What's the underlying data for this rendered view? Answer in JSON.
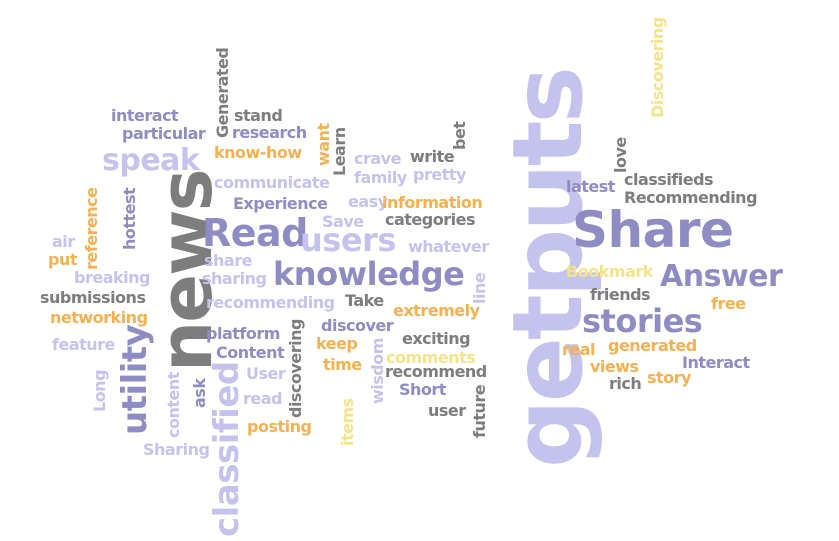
{
  "palette": {
    "purple": "#8d8cc3",
    "lavender": "#c3c3ee",
    "gray": "#7d7d7d",
    "orange": "#f5b152",
    "yellow": "#f5e38a"
  },
  "words": [
    {
      "text": "getputs",
      "color": "lavender",
      "vertical": true
    },
    {
      "text": "news",
      "color": "gray",
      "vertical": true
    },
    {
      "text": "Share",
      "color": "purple",
      "vertical": false
    },
    {
      "text": "Read",
      "color": "purple",
      "vertical": false
    },
    {
      "text": "users",
      "color": "lavender",
      "vertical": false
    },
    {
      "text": "knowledge",
      "color": "purple",
      "vertical": false
    },
    {
      "text": "classified",
      "color": "lavender",
      "vertical": true
    },
    {
      "text": "utility",
      "color": "purple",
      "vertical": true
    },
    {
      "text": "speak",
      "color": "lavender",
      "vertical": false
    },
    {
      "text": "stories",
      "color": "purple",
      "vertical": false
    },
    {
      "text": "Answer",
      "color": "purple",
      "vertical": false
    },
    {
      "text": "Discovering",
      "color": "yellow",
      "vertical": true
    },
    {
      "text": "Generated",
      "color": "gray",
      "vertical": true
    },
    {
      "text": "interact",
      "color": "purple",
      "vertical": false
    },
    {
      "text": "stand",
      "color": "gray",
      "vertical": false
    },
    {
      "text": "particular",
      "color": "purple",
      "vertical": false
    },
    {
      "text": "research",
      "color": "purple",
      "vertical": false
    },
    {
      "text": "want",
      "color": "orange",
      "vertical": true
    },
    {
      "text": "Learn",
      "color": "gray",
      "vertical": true
    },
    {
      "text": "bet",
      "color": "gray",
      "vertical": true
    },
    {
      "text": "know-how",
      "color": "orange",
      "vertical": false
    },
    {
      "text": "crave",
      "color": "lavender",
      "vertical": false
    },
    {
      "text": "write",
      "color": "gray",
      "vertical": false
    },
    {
      "text": "love",
      "color": "gray",
      "vertical": true
    },
    {
      "text": "family",
      "color": "lavender",
      "vertical": false
    },
    {
      "text": "pretty",
      "color": "lavender",
      "vertical": false
    },
    {
      "text": "communicate",
      "color": "lavender",
      "vertical": false
    },
    {
      "text": "latest",
      "color": "purple",
      "vertical": false
    },
    {
      "text": "classifieds",
      "color": "gray",
      "vertical": false
    },
    {
      "text": "hottest",
      "color": "purple",
      "vertical": true
    },
    {
      "text": "Experience",
      "color": "purple",
      "vertical": false
    },
    {
      "text": "easy",
      "color": "lavender",
      "vertical": false
    },
    {
      "text": "information",
      "color": "orange",
      "vertical": false
    },
    {
      "text": "Recommending",
      "color": "gray",
      "vertical": false
    },
    {
      "text": "reference",
      "color": "orange",
      "vertical": true
    },
    {
      "text": "Save",
      "color": "lavender",
      "vertical": false
    },
    {
      "text": "categories",
      "color": "gray",
      "vertical": false
    },
    {
      "text": "air",
      "color": "lavender",
      "vertical": false
    },
    {
      "text": "whatever",
      "color": "lavender",
      "vertical": false
    },
    {
      "text": "put",
      "color": "orange",
      "vertical": false
    },
    {
      "text": "share",
      "color": "lavender",
      "vertical": false
    },
    {
      "text": "line",
      "color": "lavender",
      "vertical": true
    },
    {
      "text": "breaking",
      "color": "lavender",
      "vertical": false
    },
    {
      "text": "sharing",
      "color": "lavender",
      "vertical": false
    },
    {
      "text": "Bookmark",
      "color": "yellow",
      "vertical": false
    },
    {
      "text": "submissions",
      "color": "gray",
      "vertical": false
    },
    {
      "text": "friends",
      "color": "gray",
      "vertical": false
    },
    {
      "text": "free",
      "color": "orange",
      "vertical": false
    },
    {
      "text": "recommending",
      "color": "lavender",
      "vertical": false
    },
    {
      "text": "Take",
      "color": "gray",
      "vertical": false
    },
    {
      "text": "networking",
      "color": "orange",
      "vertical": false
    },
    {
      "text": "extremely",
      "color": "orange",
      "vertical": false
    },
    {
      "text": "platform",
      "color": "purple",
      "vertical": false
    },
    {
      "text": "discover",
      "color": "purple",
      "vertical": false
    },
    {
      "text": "discovering",
      "color": "gray",
      "vertical": true
    },
    {
      "text": "feature",
      "color": "lavender",
      "vertical": false
    },
    {
      "text": "keep",
      "color": "orange",
      "vertical": false
    },
    {
      "text": "exciting",
      "color": "gray",
      "vertical": false
    },
    {
      "text": "Content",
      "color": "purple",
      "vertical": false
    },
    {
      "text": "real",
      "color": "orange",
      "vertical": false
    },
    {
      "text": "generated",
      "color": "orange",
      "vertical": false
    },
    {
      "text": "wisdom",
      "color": "lavender",
      "vertical": true
    },
    {
      "text": "comments",
      "color": "yellow",
      "vertical": false
    },
    {
      "text": "time",
      "color": "orange",
      "vertical": false
    },
    {
      "text": "Interact",
      "color": "purple",
      "vertical": false
    },
    {
      "text": "User",
      "color": "lavender",
      "vertical": false
    },
    {
      "text": "recommend",
      "color": "gray",
      "vertical": false
    },
    {
      "text": "views",
      "color": "orange",
      "vertical": false
    },
    {
      "text": "story",
      "color": "orange",
      "vertical": false
    },
    {
      "text": "Long",
      "color": "lavender",
      "vertical": true
    },
    {
      "text": "content",
      "color": "lavender",
      "vertical": true
    },
    {
      "text": "ask",
      "color": "purple",
      "vertical": true
    },
    {
      "text": "rich",
      "color": "gray",
      "vertical": false
    },
    {
      "text": "Short",
      "color": "purple",
      "vertical": false
    },
    {
      "text": "read",
      "color": "lavender",
      "vertical": false
    },
    {
      "text": "future",
      "color": "gray",
      "vertical": true
    },
    {
      "text": "items",
      "color": "yellow",
      "vertical": true
    },
    {
      "text": "user",
      "color": "gray",
      "vertical": false
    },
    {
      "text": "posting",
      "color": "orange",
      "vertical": false
    },
    {
      "text": "Sharing",
      "color": "lavender",
      "vertical": false
    }
  ]
}
